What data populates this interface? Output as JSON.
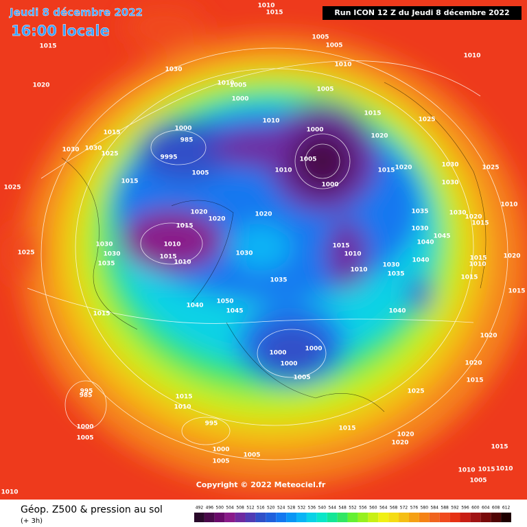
{
  "header": {
    "date": "Jeudi 8 décembre 2022",
    "time": "16:00 locale",
    "run": "Run ICON 12 Z du Jeudi 8 décembre 2022"
  },
  "copyright": "Copyright © 2022 Meteociel.fr",
  "footer": {
    "title": "Géop. Z500 & pression au sol",
    "subtitle": "(+ 3h)"
  },
  "legend": {
    "ticks": [
      492,
      496,
      500,
      504,
      508,
      512,
      516,
      520,
      524,
      528,
      532,
      536,
      540,
      544,
      548,
      552,
      556,
      560,
      564,
      568,
      572,
      576,
      580,
      584,
      588,
      592,
      596,
      600,
      604,
      608,
      612
    ],
    "colors": [
      "#2a0a2a",
      "#4a0a4a",
      "#6a0a6a",
      "#8a1a8a",
      "#6e2aa0",
      "#503cb4",
      "#3050c8",
      "#2060dc",
      "#1478f0",
      "#0a96f5",
      "#0ab4f5",
      "#0ad2e6",
      "#0ae6c8",
      "#14e696",
      "#32e664",
      "#64f032",
      "#96f01e",
      "#c8f014",
      "#f0f014",
      "#f5dc14",
      "#f5be14",
      "#f5a014",
      "#f58214",
      "#f0641e",
      "#f04a1e",
      "#e63214",
      "#c81e14",
      "#a01414",
      "#780a0a",
      "#500505",
      "#1e0000"
    ]
  },
  "isobar_labels": [
    "1010",
    "1015",
    "1015",
    "1030",
    "1020",
    "1005",
    "1005",
    "1010",
    "1010",
    "1005",
    "1000",
    "1005",
    "1010",
    "1015",
    "1025",
    "1000",
    "985",
    "9995",
    "1005",
    "1015",
    "1030",
    "1030",
    "1025",
    "1010",
    "1000",
    "1020",
    "1010",
    "1005",
    "1000",
    "1015",
    "1020",
    "1030",
    "1025",
    "1030",
    "1025",
    "1015",
    "1020",
    "1020",
    "1015",
    "1020",
    "1010",
    "1015",
    "1010",
    "1030",
    "1030",
    "1035",
    "1025",
    "1035",
    "1030",
    "1040",
    "1045",
    "1015",
    "1010",
    "1010",
    "1030",
    "1035",
    "1040",
    "1030",
    "1020",
    "1015",
    "1010",
    "1030",
    "1035",
    "1015",
    "1040",
    "1045",
    "1050",
    "1040",
    "1015",
    "1010",
    "1020",
    "1015",
    "1015",
    "1020",
    "1020",
    "1015",
    "1025",
    "1000",
    "1000",
    "1000",
    "1005",
    "1015",
    "1010",
    "995",
    "985",
    "1000",
    "1005",
    "995",
    "1000",
    "1005",
    "1005",
    "1015",
    "1020",
    "1020",
    "1015",
    "1010",
    "1015",
    "1010",
    "1010",
    "1005"
  ]
}
